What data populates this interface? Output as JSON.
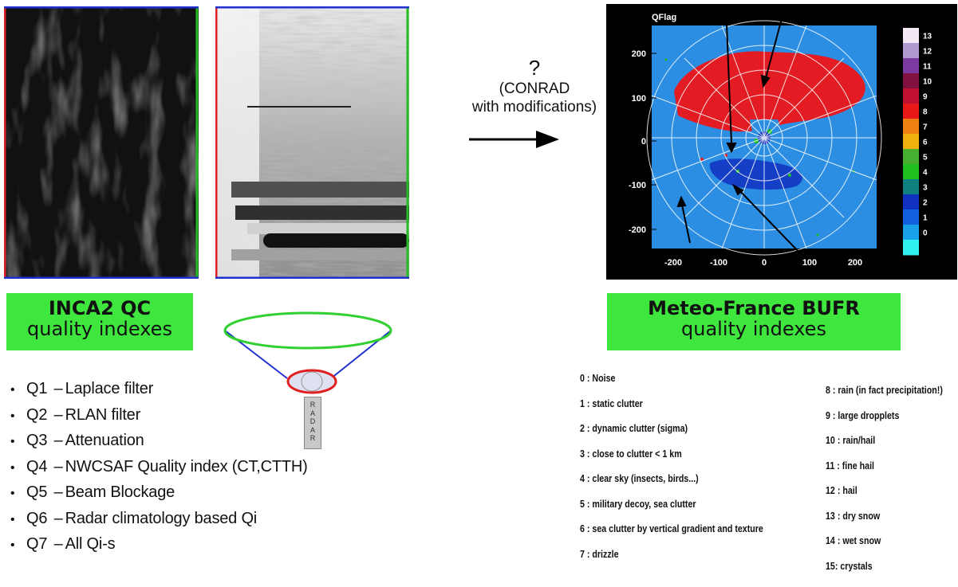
{
  "left": {
    "title": "INCA2 QC",
    "subtitle": "quality indexes",
    "items": [
      {
        "id": "Q1",
        "text": "Laplace filter"
      },
      {
        "id": "Q2",
        "text": "RLAN filter"
      },
      {
        "id": "Q3",
        "text": "Attenuation"
      },
      {
        "id": "Q4",
        "text": "NWCSAF Quality index (CT,CTTH)"
      },
      {
        "id": "Q5",
        "text": "Beam Blockage"
      },
      {
        "id": "Q6",
        "text": "Radar climatology based Qi"
      },
      {
        "id": "Q7",
        "text": "All Qi-s"
      }
    ],
    "dash": "–"
  },
  "middle": {
    "question": "?",
    "line1": "(CONRAD",
    "line2": "with modifications)"
  },
  "radar_label": "RADAR",
  "plot": {
    "title": "QFlag",
    "y_ticks": [
      "200",
      "100",
      "0",
      "-100",
      "-200"
    ],
    "x_ticks": [
      "-200",
      "-100",
      "0",
      "100",
      "200"
    ],
    "colorbar": [
      {
        "label": "13",
        "color": "#f4e8f4"
      },
      {
        "label": "12",
        "color": "#b09ad0"
      },
      {
        "label": "11",
        "color": "#7a3aa0"
      },
      {
        "label": "10",
        "color": "#801040"
      },
      {
        "label": "9",
        "color": "#c01030"
      },
      {
        "label": "8",
        "color": "#e81818"
      },
      {
        "label": "7",
        "color": "#f08010"
      },
      {
        "label": "6",
        "color": "#f0b010"
      },
      {
        "label": "5",
        "color": "#48b030"
      },
      {
        "label": "4",
        "color": "#20c020"
      },
      {
        "label": "3",
        "color": "#108080"
      },
      {
        "label": "2",
        "color": "#1030c0"
      },
      {
        "label": "1",
        "color": "#1060e0"
      },
      {
        "label": "0",
        "color": "#18a0e8"
      },
      {
        "label": "",
        "color": "#30f0f0"
      }
    ],
    "background_color": "#2b8ee3",
    "rain_color": "#e31b23"
  },
  "right": {
    "title": "Meteo-France BUFR",
    "subtitle": "quality indexes",
    "legend_left": [
      "0 : Noise",
      "1 : static clutter",
      "2 : dynamic clutter (sigma)",
      "3 : close to clutter  < 1 km",
      "4 : clear sky (insects, birds...)",
      "5 : military decoy, sea clutter",
      "6 : sea clutter by vertical gradient and texture",
      "7 : drizzle"
    ],
    "legend_right": [
      "8 : rain (in fact precipitation!)",
      "9 : large dropplets",
      "10 : rain/hail",
      "11 : fine hail",
      "12 : hail",
      "13 : dry snow",
      "14 : wet snow",
      "15:  crystals"
    ]
  }
}
